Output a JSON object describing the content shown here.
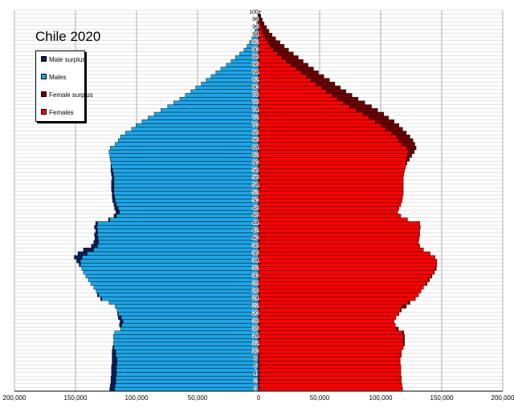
{
  "chart_data": {
    "type": "bar",
    "title": "Chile 2020",
    "orientation": "horizontal population pyramid",
    "x_ticks": [
      "200,000",
      "150,000",
      "100,000",
      "50,000",
      "0",
      "50,000",
      "100,000",
      "150,000",
      "200,000"
    ],
    "xlim": [
      -200000,
      200000
    ],
    "ages_labeled": [
      "0",
      "2",
      "4",
      "6",
      "8",
      "10",
      "12",
      "14",
      "16",
      "18",
      "20",
      "22",
      "24",
      "26",
      "28",
      "30",
      "32",
      "34",
      "36",
      "38",
      "40",
      "42",
      "44",
      "46",
      "48",
      "50",
      "52",
      "54",
      "56",
      "58",
      "60",
      "62",
      "64",
      "66",
      "68",
      "70",
      "72",
      "74",
      "76",
      "78",
      "80",
      "82",
      "84",
      "86",
      "88",
      "90",
      "92",
      "94",
      "96",
      "98",
      "100+"
    ],
    "legend": [
      {
        "name": "Male surplus",
        "color": "#0b1f5c"
      },
      {
        "name": "Males",
        "color": "#1ea4e6"
      },
      {
        "name": "Female surplus",
        "color": "#6b0000"
      },
      {
        "name": "Females",
        "color": "#ff0000"
      }
    ],
    "grid": true,
    "legend_position": "top-left",
    "males": [
      122000,
      121500,
      121000,
      121000,
      120500,
      120500,
      120500,
      120000,
      120000,
      120000,
      120000,
      119500,
      119000,
      118500,
      119000,
      118000,
      113000,
      114000,
      113500,
      115000,
      115500,
      116000,
      117500,
      122500,
      129500,
      132000,
      133000,
      135000,
      137500,
      139500,
      141500,
      143500,
      145000,
      147000,
      149000,
      151000,
      148000,
      143500,
      137000,
      135000,
      134000,
      134500,
      133500,
      134500,
      133500,
      123000,
      118500,
      117000,
      118000,
      118500,
      119500,
      120000,
      120000,
      120500,
      120500,
      120500,
      120000,
      120500,
      121000,
      121000,
      121000,
      121500,
      122000,
      122500,
      121500,
      117500,
      115000,
      113000,
      109000,
      104000,
      100500,
      95500,
      90500,
      85500,
      80000,
      74500,
      69500,
      64500,
      60000,
      55500,
      51500,
      47000,
      43000,
      39000,
      35000,
      31000,
      26500,
      22500,
      19000,
      15500,
      12000,
      9500,
      7500,
      5500,
      4000,
      3000,
      2000,
      1500,
      1000,
      600,
      300
    ],
    "females": [
      118000,
      117500,
      117000,
      117000,
      116500,
      116500,
      116500,
      116000,
      116000,
      117000,
      117000,
      118500,
      119500,
      119500,
      119500,
      119000,
      114500,
      112000,
      111000,
      112500,
      115000,
      117000,
      121000,
      124000,
      128500,
      131000,
      133000,
      135000,
      138000,
      140000,
      142000,
      144000,
      145500,
      146000,
      146000,
      144500,
      140500,
      135000,
      132000,
      131000,
      131500,
      132000,
      132000,
      132500,
      132000,
      122000,
      116500,
      114000,
      115000,
      116500,
      117500,
      118000,
      118500,
      118500,
      118500,
      118500,
      118500,
      119000,
      119500,
      120500,
      121500,
      123500,
      125500,
      127500,
      129000,
      128000,
      126500,
      124000,
      121000,
      118000,
      115000,
      111000,
      106500,
      102500,
      97500,
      92500,
      87000,
      81500,
      76500,
      71500,
      67000,
      62500,
      58000,
      53500,
      49000,
      45000,
      40500,
      36500,
      32500,
      28500,
      24500,
      21000,
      17500,
      14000,
      11000,
      8500,
      6500,
      4500,
      3000,
      1800,
      1200
    ]
  }
}
